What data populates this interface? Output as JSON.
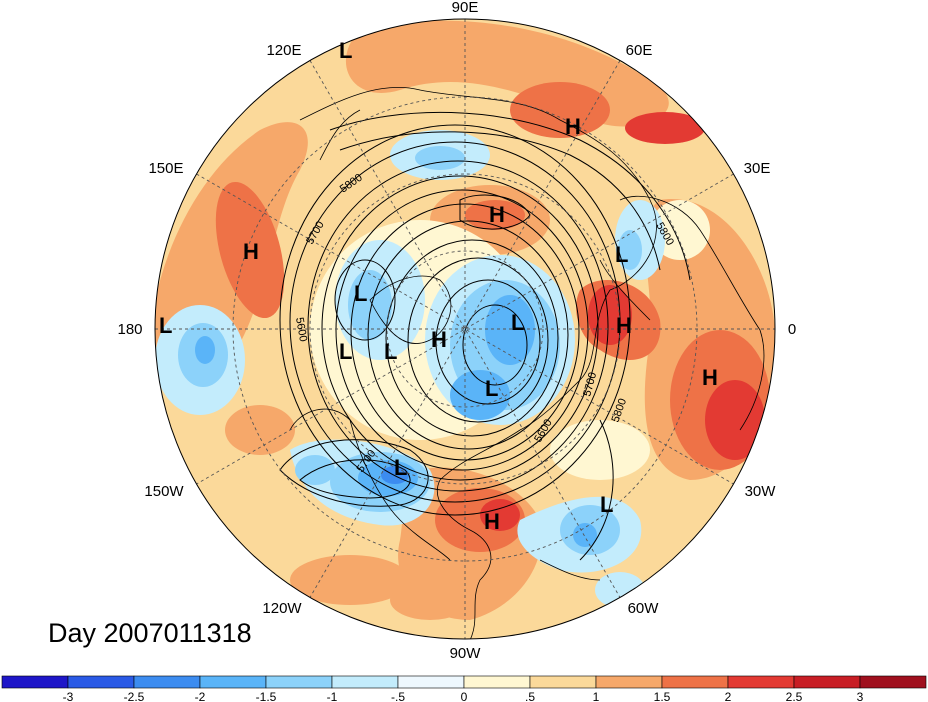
{
  "title": "Day 2007011318",
  "longitude_labels": [
    "90E",
    "60E",
    "120E",
    "150E",
    "30E",
    "180",
    "0",
    "150W",
    "30W",
    "120W",
    "60W",
    "90W"
  ],
  "pressure_centers": [
    {
      "type": "L",
      "lon": "120E"
    },
    {
      "type": "H",
      "lon": "60E"
    },
    {
      "type": "H",
      "lon": "150E"
    },
    {
      "type": "H",
      "lon": "90E"
    },
    {
      "type": "L",
      "lon": "30E"
    },
    {
      "type": "L",
      "lon": "180"
    },
    {
      "type": "L"
    },
    {
      "type": "L"
    },
    {
      "type": "L"
    },
    {
      "type": "H"
    },
    {
      "type": "L"
    },
    {
      "type": "H",
      "lon": "0"
    },
    {
      "type": "L"
    },
    {
      "type": "H",
      "lon": "30W"
    },
    {
      "type": "L",
      "lon": "120W"
    },
    {
      "type": "H",
      "lon": "90W"
    },
    {
      "type": "L",
      "lon": "60W"
    }
  ],
  "contour_labels": [
    "5800",
    "5700",
    "5600",
    "5700",
    "5600",
    "5700",
    "5800",
    "5800"
  ],
  "colorbar": {
    "ticks": [
      "-3",
      "-2.5",
      "-2",
      "-1.5",
      "-1",
      "-.5",
      "0",
      ".5",
      "1",
      "1.5",
      "2",
      "2.5",
      "3"
    ],
    "colors": [
      "#1e16c8",
      "#2a5ae6",
      "#3c8cf0",
      "#5ab4f8",
      "#8cd2fa",
      "#c3ecfc",
      "#eef8fe",
      "#fff7d2",
      "#fbd99a",
      "#f6a86a",
      "#ee7247",
      "#e33a33",
      "#c81e25",
      "#a0101e"
    ]
  }
}
